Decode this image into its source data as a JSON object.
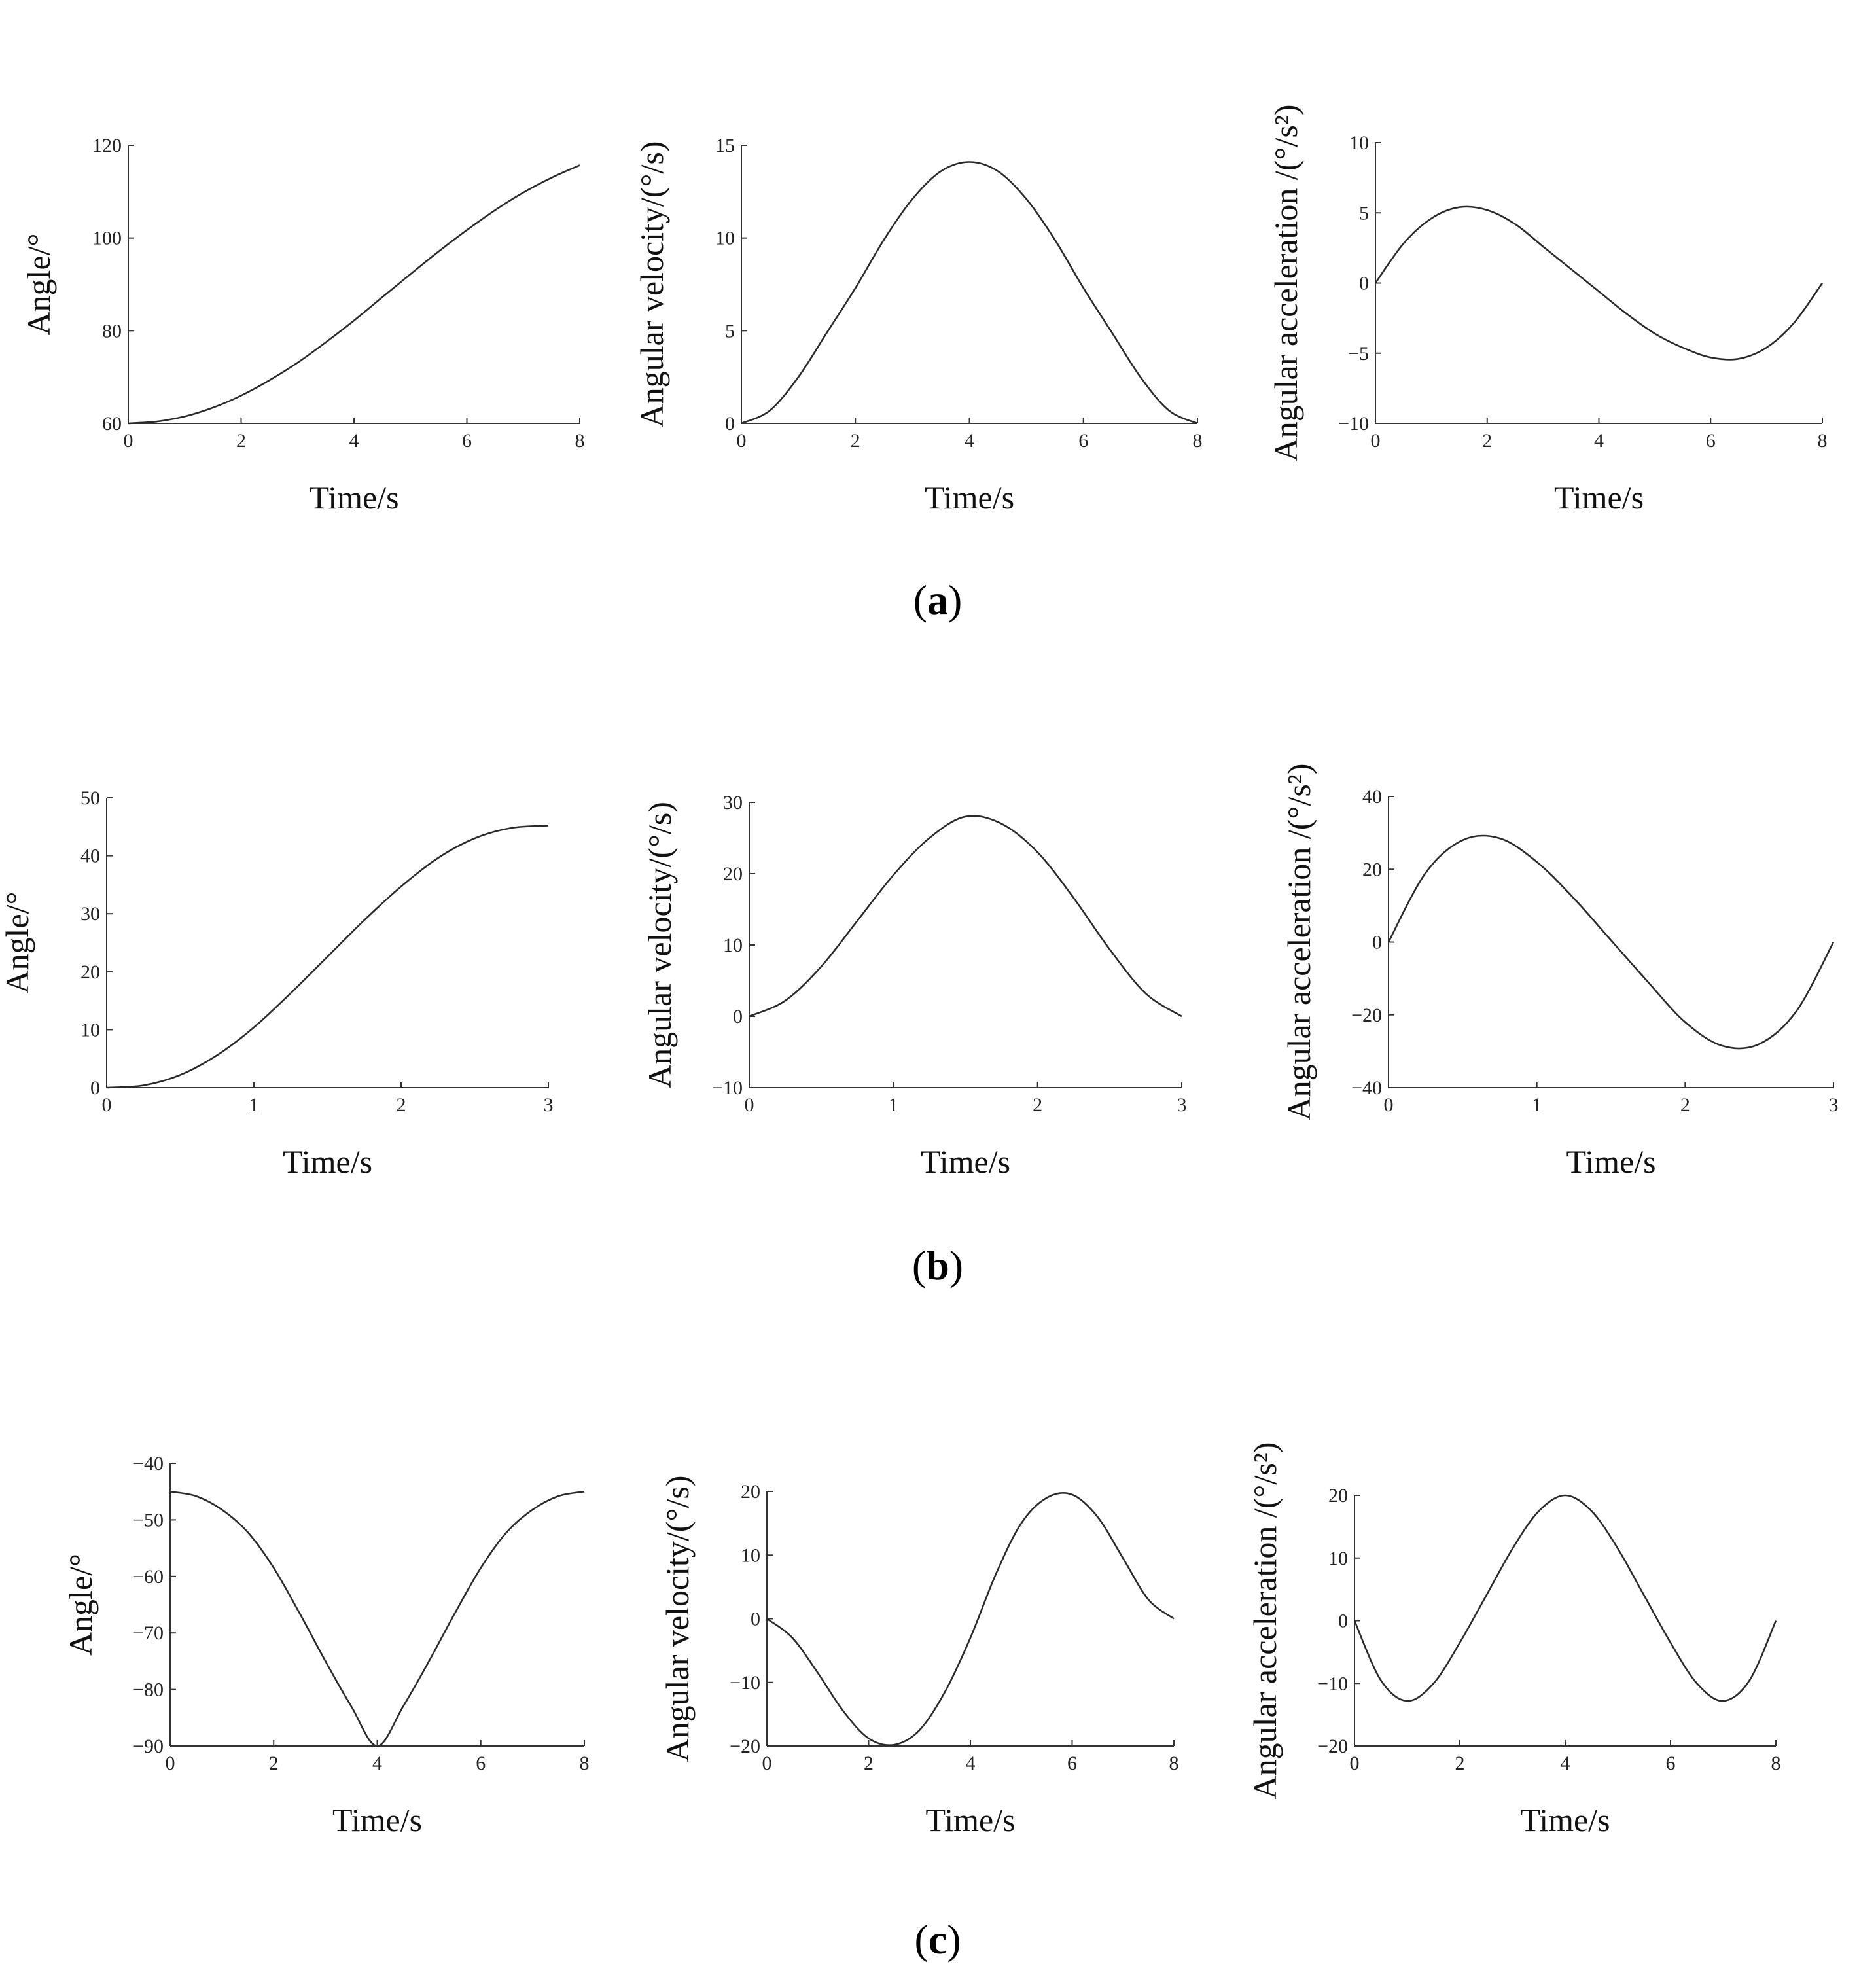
{
  "figure": {
    "panels": [
      {
        "caption_open": "(",
        "caption_letter": "a",
        "caption_close": ")"
      },
      {
        "caption_open": "(",
        "caption_letter": "b",
        "caption_close": ")"
      },
      {
        "caption_open": "(",
        "caption_letter": "c",
        "caption_close": ")"
      }
    ]
  },
  "chart_data": [
    {
      "id": "a-angle",
      "panel": "a",
      "type": "line",
      "xlabel": "Time/s",
      "ylabel": "Angle/°",
      "xlim": [
        0,
        8
      ],
      "ylim": [
        60,
        120
      ],
      "xticks": [
        0,
        2,
        4,
        6,
        8
      ],
      "yticks": [
        60,
        80,
        100,
        120
      ],
      "x": [
        0,
        0.5,
        1,
        1.5,
        2,
        2.5,
        3,
        3.5,
        4,
        4.5,
        5,
        5.5,
        6,
        6.5,
        7,
        7.5,
        8
      ],
      "y": [
        60,
        60.4,
        61.5,
        63.4,
        66,
        69.3,
        73.1,
        77.5,
        82.2,
        87.2,
        92.2,
        97.1,
        101.7,
        106,
        109.8,
        113,
        115.7
      ]
    },
    {
      "id": "a-velocity",
      "panel": "a",
      "type": "line",
      "xlabel": "Time/s",
      "ylabel": "Angular velocity/(°/s)",
      "xlim": [
        0,
        8
      ],
      "ylim": [
        0,
        15
      ],
      "xticks": [
        0,
        2,
        4,
        6,
        8
      ],
      "yticks": [
        0,
        5,
        10,
        15
      ],
      "x": [
        0,
        0.5,
        1,
        1.5,
        2,
        2.5,
        3,
        3.5,
        4,
        4.5,
        5,
        5.5,
        6,
        6.5,
        7,
        7.5,
        8
      ],
      "y": [
        0,
        0.7,
        2.5,
        4.9,
        7.3,
        9.9,
        12.1,
        13.6,
        14.1,
        13.6,
        12.1,
        9.9,
        7.3,
        4.9,
        2.5,
        0.7,
        0
      ]
    },
    {
      "id": "a-acceleration",
      "panel": "a",
      "type": "line",
      "xlabel": "Time/s",
      "ylabel": "Angular acceleration /(°/s²)",
      "xlim": [
        0,
        8
      ],
      "ylim": [
        -10,
        10
      ],
      "xticks": [
        0,
        2,
        4,
        6,
        8
      ],
      "yticks": [
        -10,
        -5,
        0,
        5,
        10
      ],
      "x": [
        0,
        0.5,
        1,
        1.5,
        2,
        2.5,
        3,
        3.5,
        4,
        4.5,
        5,
        5.5,
        6,
        6.5,
        7,
        7.5,
        8
      ],
      "y": [
        0,
        2.8,
        4.6,
        5.4,
        5.2,
        4.2,
        2.6,
        1,
        -0.6,
        -2.2,
        -3.6,
        -4.6,
        -5.3,
        -5.4,
        -4.6,
        -2.8,
        0
      ]
    },
    {
      "id": "b-angle",
      "panel": "b",
      "type": "line",
      "xlabel": "Time/s",
      "ylabel": "Angle/°",
      "xlim": [
        0,
        3
      ],
      "ylim": [
        0,
        50
      ],
      "xticks": [
        0,
        1,
        2,
        3
      ],
      "yticks": [
        0,
        10,
        20,
        30,
        40,
        50
      ],
      "x": [
        0,
        0.25,
        0.5,
        0.75,
        1,
        1.25,
        1.5,
        1.75,
        2,
        2.25,
        2.5,
        2.75,
        3
      ],
      "y": [
        0,
        0.4,
        2.2,
        5.6,
        10.4,
        16.3,
        22.6,
        28.9,
        34.7,
        39.6,
        43,
        44.8,
        45.2
      ]
    },
    {
      "id": "b-velocity",
      "panel": "b",
      "type": "line",
      "xlabel": "Time/s",
      "ylabel": "Angular velocity/(°/s)",
      "xlim": [
        0,
        3
      ],
      "ylim": [
        -10,
        30
      ],
      "xticks": [
        0,
        1,
        2,
        3
      ],
      "yticks": [
        -10,
        0,
        10,
        20,
        30
      ],
      "x": [
        0,
        0.25,
        0.5,
        0.75,
        1,
        1.25,
        1.5,
        1.75,
        2,
        2.25,
        2.5,
        2.75,
        3
      ],
      "y": [
        0,
        2.2,
        7,
        13.4,
        19.8,
        25,
        28,
        27,
        23,
        16.6,
        9.4,
        3.2,
        0
      ]
    },
    {
      "id": "b-acceleration",
      "panel": "b",
      "type": "line",
      "xlabel": "Time/s",
      "ylabel": "Angular acceleration /(°/s²)",
      "xlim": [
        0,
        3
      ],
      "ylim": [
        -40,
        40
      ],
      "xticks": [
        0,
        1,
        2,
        3
      ],
      "yticks": [
        -40,
        -20,
        0,
        20,
        40
      ],
      "x": [
        0,
        0.25,
        0.5,
        0.75,
        1,
        1.25,
        1.5,
        1.75,
        2,
        2.25,
        2.5,
        2.75,
        3
      ],
      "y": [
        0,
        19,
        28,
        28.5,
        22,
        12,
        0.5,
        -11,
        -22,
        -28.5,
        -28,
        -19,
        0
      ]
    },
    {
      "id": "c-angle",
      "panel": "c",
      "type": "line",
      "xlabel": "Time/s",
      "ylabel": "Angle/°",
      "xlim": [
        0,
        8
      ],
      "ylim": [
        -90,
        -40
      ],
      "xticks": [
        0,
        2,
        4,
        6,
        8
      ],
      "yticks": [
        -90,
        -80,
        -70,
        -60,
        -50,
        -40
      ],
      "x": [
        0,
        0.5,
        1,
        1.5,
        2,
        2.5,
        3,
        3.5,
        4,
        4.5,
        5,
        5.5,
        6,
        6.5,
        7,
        7.5,
        8
      ],
      "y": [
        -45,
        -45.8,
        -48.2,
        -52.2,
        -58.5,
        -66.5,
        -75,
        -83,
        -90,
        -83,
        -75,
        -66.5,
        -58.5,
        -52.2,
        -48.2,
        -45.8,
        -45
      ]
    },
    {
      "id": "c-velocity",
      "panel": "c",
      "type": "line",
      "xlabel": "Time/s",
      "ylabel": "Angular velocity/(°/s)",
      "xlim": [
        0,
        8
      ],
      "ylim": [
        -20,
        20
      ],
      "xticks": [
        0,
        2,
        4,
        6,
        8
      ],
      "yticks": [
        -20,
        -10,
        0,
        10,
        20
      ],
      "x": [
        0,
        0.5,
        1,
        1.5,
        2,
        2.5,
        3,
        3.5,
        4,
        4.5,
        5,
        5.5,
        6,
        6.5,
        7,
        7.5,
        8
      ],
      "y": [
        0,
        -3,
        -8.5,
        -14.5,
        -18.8,
        -19.8,
        -17.5,
        -11.5,
        -3,
        7,
        15,
        19,
        19.5,
        16,
        9.5,
        3,
        0
      ]
    },
    {
      "id": "c-acceleration",
      "panel": "c",
      "type": "line",
      "xlabel": "Time/s",
      "ylabel": "Angular acceleration /(°/s²)",
      "xlim": [
        0,
        8
      ],
      "ylim": [
        -20,
        20
      ],
      "xticks": [
        0,
        2,
        4,
        6,
        8
      ],
      "yticks": [
        -20,
        -10,
        0,
        10,
        20
      ],
      "x": [
        0,
        0.5,
        1,
        1.5,
        2,
        2.5,
        3,
        3.5,
        4,
        4.5,
        5,
        5.5,
        6,
        6.5,
        7,
        7.5,
        8
      ],
      "y": [
        0,
        -9.5,
        -12.8,
        -10,
        -3.5,
        4,
        11.5,
        17.5,
        20,
        17.5,
        11.5,
        4,
        -3.5,
        -10,
        -12.8,
        -9.5,
        0
      ]
    }
  ]
}
